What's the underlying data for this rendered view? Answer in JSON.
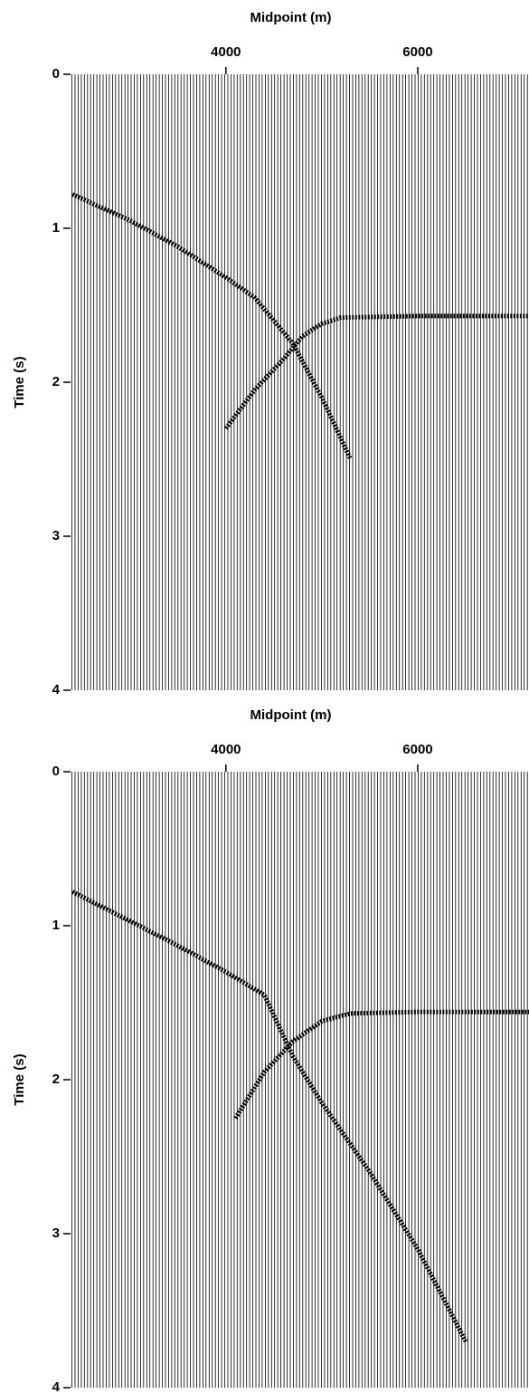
{
  "chart_data": [
    {
      "type": "wiggle",
      "x_label": "Midpoint (m)",
      "y_label": "Time (s)",
      "xlim": [
        2380,
        7160
      ],
      "ylim": [
        0,
        4
      ],
      "xticks": [
        4000,
        6000
      ],
      "yticks": [
        0,
        1,
        2,
        3,
        4
      ],
      "series": [
        {
          "color": "#000000",
          "x": [
            2400,
            3000,
            3500,
            4000,
            4300,
            4700,
            5000,
            5300
          ],
          "values": [
            0.78,
            0.95,
            1.12,
            1.32,
            1.45,
            1.75,
            2.1,
            2.5
          ]
        },
        {
          "color": "#000000",
          "x": [
            4000,
            4300,
            4600,
            4800,
            5000,
            5200,
            6000,
            7160
          ],
          "values": [
            2.3,
            2.05,
            1.85,
            1.7,
            1.62,
            1.58,
            1.57,
            1.57
          ]
        }
      ]
    },
    {
      "type": "wiggle",
      "x_label": "Midpoint (m)",
      "y_label": "Time (s)",
      "xlim": [
        2380,
        7160
      ],
      "ylim": [
        0,
        4
      ],
      "xticks": [
        4000,
        6000
      ],
      "yticks": [
        0,
        1,
        2,
        3,
        4
      ],
      "series": [
        {
          "color": "#000000",
          "x": [
            2400,
            3000,
            3500,
            4000,
            4400,
            4700,
            5000,
            5500,
            6000,
            6500
          ],
          "values": [
            0.78,
            0.97,
            1.13,
            1.3,
            1.45,
            1.85,
            2.15,
            2.6,
            3.1,
            3.7
          ]
        },
        {
          "color": "#000000",
          "x": [
            4100,
            4400,
            4700,
            5000,
            5300,
            6000,
            7160
          ],
          "values": [
            2.25,
            1.95,
            1.75,
            1.62,
            1.57,
            1.56,
            1.56
          ]
        }
      ]
    }
  ]
}
